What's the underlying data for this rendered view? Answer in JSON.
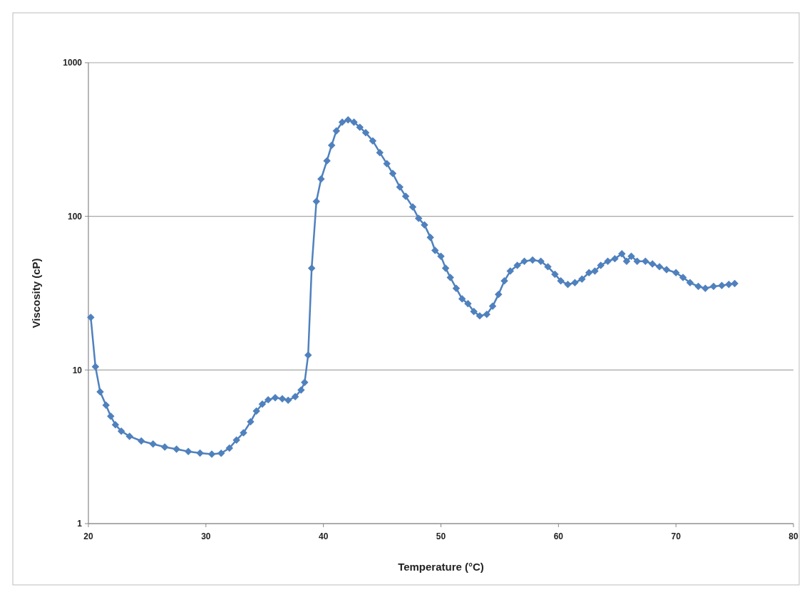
{
  "chart_data": {
    "type": "line",
    "xlabel": "Temperature (°C)",
    "ylabel": "Viscosity (cP)",
    "log": "y",
    "xlim": [
      20,
      80
    ],
    "xticks": [
      20,
      30,
      40,
      50,
      60,
      70,
      80
    ],
    "ylim": [
      1,
      1000
    ],
    "yticks": [
      1,
      10,
      100,
      1000
    ],
    "grid": "y",
    "marker": "diamond",
    "line_style": "solid",
    "series": [
      {
        "color": "#4f81bd",
        "x": [
          20.2,
          20.6,
          21.0,
          21.5,
          21.9,
          22.3,
          22.8,
          23.5,
          24.5,
          25.5,
          26.5,
          27.5,
          28.5,
          29.5,
          30.5,
          31.3,
          32.0,
          32.6,
          33.2,
          33.8,
          34.3,
          34.8,
          35.3,
          35.9,
          36.5,
          37.0,
          37.6,
          38.1,
          38.4,
          38.7,
          39.0,
          39.4,
          39.8,
          40.3,
          40.7,
          41.1,
          41.6,
          42.1,
          42.6,
          43.1,
          43.6,
          44.2,
          44.8,
          45.4,
          45.9,
          46.5,
          47.0,
          47.6,
          48.1,
          48.6,
          49.1,
          49.5,
          50.0,
          50.4,
          50.8,
          51.3,
          51.8,
          52.3,
          52.8,
          53.3,
          53.9,
          54.4,
          54.9,
          55.4,
          55.9,
          56.5,
          57.1,
          57.8,
          58.5,
          59.1,
          59.7,
          60.2,
          60.8,
          61.4,
          62.0,
          62.6,
          63.1,
          63.6,
          64.2,
          64.8,
          65.4,
          65.8,
          66.2,
          66.7,
          67.4,
          68.0,
          68.6,
          69.2,
          70.0,
          70.6,
          71.2,
          71.9,
          72.5,
          73.2,
          73.9,
          74.5,
          75.0
        ],
        "values": [
          22,
          10.5,
          7.2,
          5.9,
          5.0,
          4.4,
          4.0,
          3.7,
          3.45,
          3.3,
          3.15,
          3.05,
          2.95,
          2.88,
          2.83,
          2.87,
          3.1,
          3.5,
          3.9,
          4.6,
          5.4,
          6.0,
          6.4,
          6.6,
          6.5,
          6.35,
          6.7,
          7.4,
          8.3,
          12.5,
          46,
          125,
          175,
          230,
          290,
          360,
          410,
          425,
          410,
          380,
          350,
          310,
          260,
          220,
          190,
          155,
          135,
          115,
          97,
          88,
          73,
          60,
          55,
          46,
          40,
          34,
          29,
          27,
          24,
          22.5,
          23,
          26,
          31,
          38,
          44,
          48,
          51,
          52,
          51,
          47,
          42,
          38,
          36,
          37,
          39,
          43,
          44,
          48,
          51,
          53,
          57,
          51,
          55,
          51,
          51,
          49,
          47,
          45,
          43,
          40,
          37,
          35,
          34,
          35,
          35.5,
          36,
          36.5
        ]
      }
    ]
  }
}
